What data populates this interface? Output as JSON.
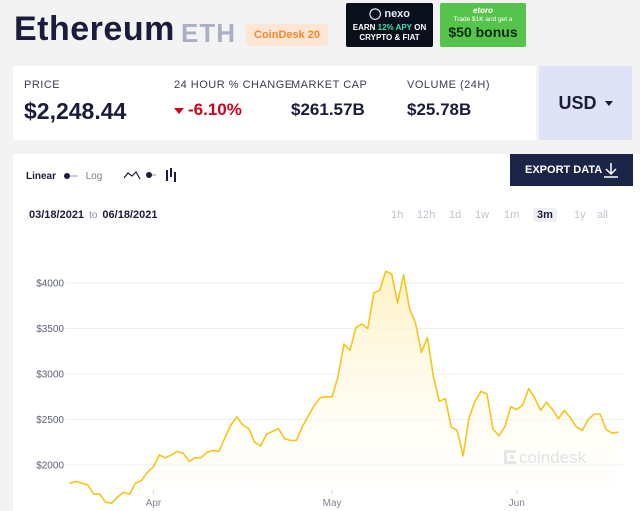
{
  "header": {
    "coin_name": "Ethereum",
    "coin_symbol": "ETH",
    "badge": "CoinDesk 20"
  },
  "ads": {
    "nexo": {
      "brand": "nexo",
      "line1_a": "EARN ",
      "line1_b": "12% APY",
      "line1_c": " ON",
      "line2": "CRYPTO & FIAT"
    },
    "etoro": {
      "brand": "etoro",
      "line1": "Trade $1K and get a",
      "line2": "$50 bonus"
    }
  },
  "stats": {
    "price": {
      "label": "PRICE",
      "value": "$2,248.44"
    },
    "change": {
      "label": "24 HOUR % CHANGE",
      "value": "-6.10%"
    },
    "market_cap": {
      "label": "MARKET CAP",
      "value": "$261.57B"
    },
    "volume": {
      "label": "VOLUME (24H)",
      "value": "$25.78B"
    }
  },
  "currency": {
    "value": "USD"
  },
  "controls": {
    "scale_linear": "Linear",
    "scale_log": "Log",
    "export_label": "EXPORT DATA",
    "date_from": "03/18/2021",
    "date_to_word": "to",
    "date_to": "06/18/2021",
    "ranges": [
      "1h",
      "12h",
      "1d",
      "1w",
      "1m",
      "3m",
      "1y",
      "all"
    ],
    "selected_range": "3m"
  },
  "watermark": "coindesk",
  "colors": {
    "line": "#f5c518",
    "fill_top": "#fff4cc",
    "accent_negative": "#d0021b"
  },
  "chart_data": {
    "type": "area",
    "title": "",
    "xlabel": "",
    "ylabel": "",
    "x_tick_labels": [
      "Apr",
      "May",
      "Jun"
    ],
    "y_tick_labels": [
      "$4000",
      "$3500",
      "$3000",
      "$2500",
      "$2000"
    ],
    "ylim": [
      1600,
      4250
    ],
    "grid": true,
    "series": [
      {
        "x": [
          "2021-03-18",
          "2021-03-19",
          "2021-03-20",
          "2021-03-21",
          "2021-03-22",
          "2021-03-23",
          "2021-03-24",
          "2021-03-25",
          "2021-03-26",
          "2021-03-27",
          "2021-03-28",
          "2021-03-29",
          "2021-03-30",
          "2021-03-31",
          "2021-04-01",
          "2021-04-02",
          "2021-04-03",
          "2021-04-04",
          "2021-04-05",
          "2021-04-06",
          "2021-04-07",
          "2021-04-08",
          "2021-04-09",
          "2021-04-10",
          "2021-04-11",
          "2021-04-12",
          "2021-04-13",
          "2021-04-14",
          "2021-04-15",
          "2021-04-16",
          "2021-04-17",
          "2021-04-18",
          "2021-04-19",
          "2021-04-20",
          "2021-04-21",
          "2021-04-22",
          "2021-04-23",
          "2021-04-24",
          "2021-04-25",
          "2021-04-26",
          "2021-04-27",
          "2021-04-28",
          "2021-04-29",
          "2021-04-30",
          "2021-05-01",
          "2021-05-02",
          "2021-05-03",
          "2021-05-04",
          "2021-05-05",
          "2021-05-06",
          "2021-05-07",
          "2021-05-08",
          "2021-05-09",
          "2021-05-10",
          "2021-05-11",
          "2021-05-12",
          "2021-05-13",
          "2021-05-14",
          "2021-05-15",
          "2021-05-16",
          "2021-05-17",
          "2021-05-18",
          "2021-05-19",
          "2021-05-20",
          "2021-05-21",
          "2021-05-22",
          "2021-05-23",
          "2021-05-24",
          "2021-05-25",
          "2021-05-26",
          "2021-05-27",
          "2021-05-28",
          "2021-05-29",
          "2021-05-30",
          "2021-05-31",
          "2021-06-01",
          "2021-06-02",
          "2021-06-03",
          "2021-06-04",
          "2021-06-05",
          "2021-06-06",
          "2021-06-07",
          "2021-06-08",
          "2021-06-09",
          "2021-06-10",
          "2021-06-11",
          "2021-06-12",
          "2021-06-13",
          "2021-06-14",
          "2021-06-15",
          "2021-06-16",
          "2021-06-17",
          "2021-06-18"
        ],
        "values": [
          1800,
          1820,
          1800,
          1780,
          1680,
          1680,
          1590,
          1580,
          1650,
          1700,
          1680,
          1800,
          1830,
          1920,
          1980,
          2110,
          2080,
          2110,
          2150,
          2130,
          2040,
          2080,
          2080,
          2140,
          2160,
          2150,
          2300,
          2440,
          2530,
          2440,
          2400,
          2250,
          2210,
          2340,
          2370,
          2400,
          2290,
          2270,
          2270,
          2420,
          2540,
          2650,
          2740,
          2750,
          2750,
          2970,
          3330,
          3260,
          3510,
          3550,
          3500,
          3890,
          3920,
          4130,
          4100,
          3780,
          4090,
          3720,
          3560,
          3240,
          3400,
          2980,
          2700,
          2730,
          2420,
          2380,
          2100,
          2520,
          2700,
          2810,
          2780,
          2400,
          2320,
          2420,
          2640,
          2610,
          2660,
          2840,
          2740,
          2600,
          2690,
          2610,
          2510,
          2600,
          2520,
          2420,
          2380,
          2500,
          2560,
          2560,
          2390,
          2350,
          2360
        ]
      }
    ]
  }
}
